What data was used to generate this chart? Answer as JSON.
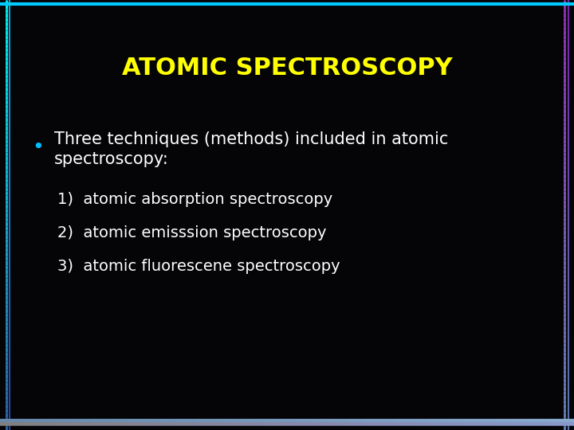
{
  "title": "ATOMIC SPECTROSCOPY",
  "title_color": "#FFFF00",
  "title_fontsize": 22,
  "background_color": "#050508",
  "bullet_text_line1": "Three techniques (methods) included in atomic",
  "bullet_text_line2": "spectroscopy:",
  "bullet_color": "#FFFFFF",
  "bullet_fontsize": 15,
  "bullet_dot_color": "#00BFFF",
  "items": [
    "1)  atomic absorption spectroscopy",
    "2)  atomic emisssion spectroscopy",
    "3)  atomic fluorescene spectroscopy"
  ],
  "items_color": "#FFFFFF",
  "items_fontsize": 14,
  "border_left_top_color": "#00FFFF",
  "border_left_bottom_color": "#4488CC",
  "border_right_top_color": "#9944CC",
  "border_right_bottom_color": "#6699CC",
  "border_bottom_left_color": "#808080",
  "border_bottom_right_color": "#8888CC",
  "border_top_color": "#00CCFF"
}
